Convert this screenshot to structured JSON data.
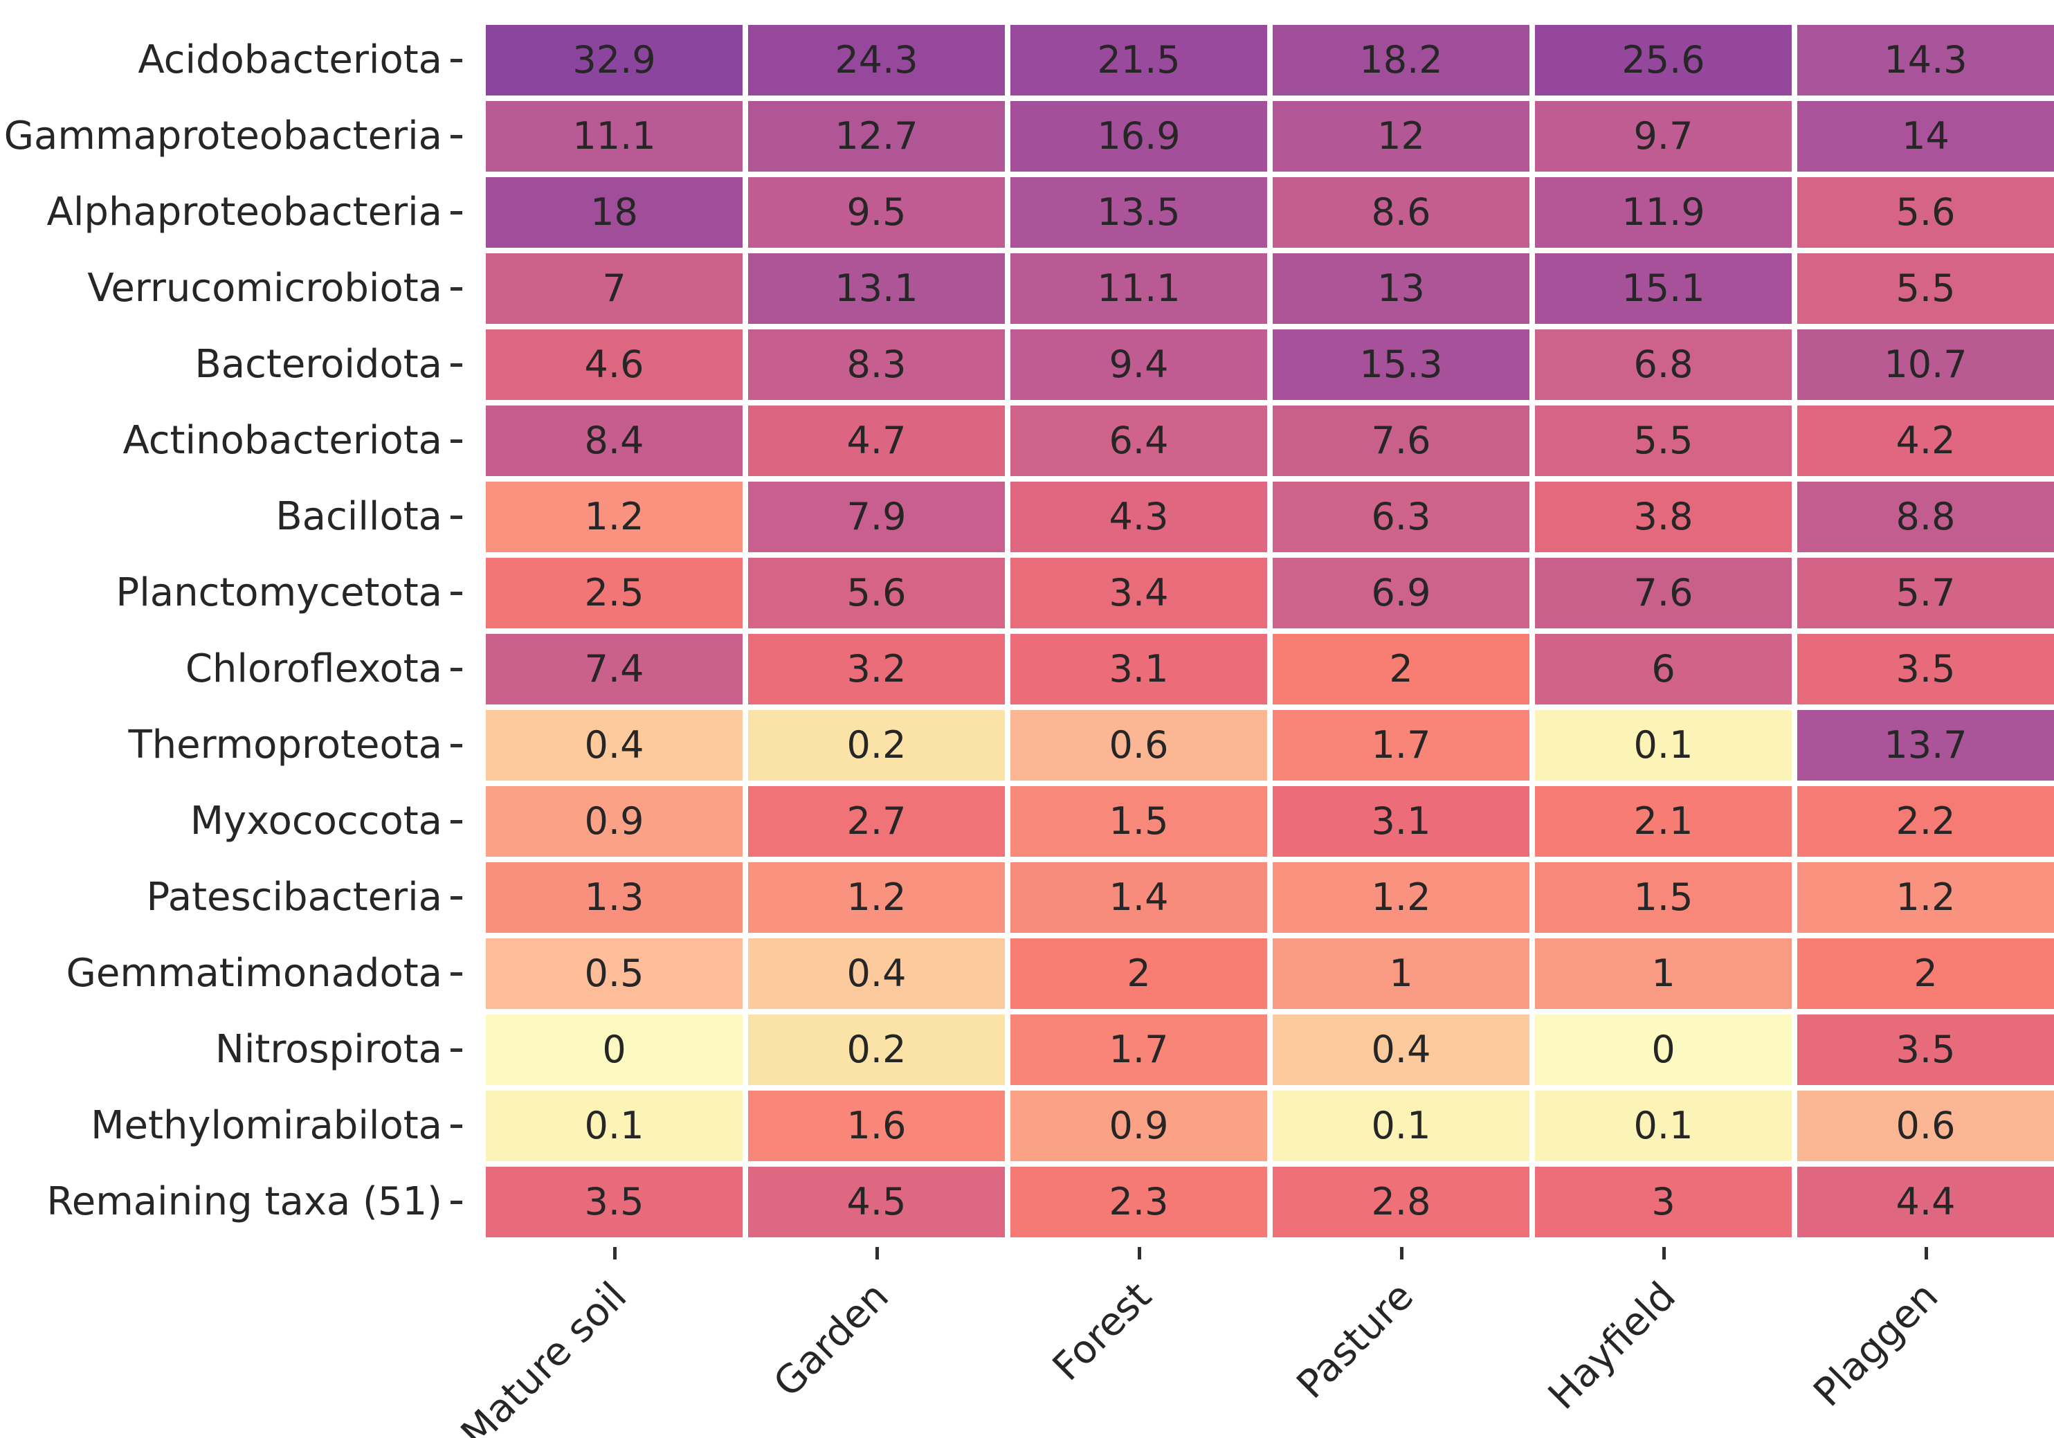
{
  "chart_data": {
    "type": "heatmap",
    "title": "",
    "rows": [
      "Acidobacteriota",
      "Gammaproteobacteria",
      "Alphaproteobacteria",
      "Verrucomicrobiota",
      "Bacteroidota",
      "Actinobacteriota",
      "Bacillota",
      "Planctomycetota",
      "Chloroflexota",
      "Thermoproteota",
      "Myxococcota",
      "Patescibacteria",
      "Gemmatimonadota",
      "Nitrospirota",
      "Methylomirabilota",
      "Remaining taxa (51)"
    ],
    "columns": [
      "Mature soil",
      "Garden",
      "Forest",
      "Pasture",
      "Hayfield",
      "Plaggen"
    ],
    "values": [
      [
        32.9,
        24.3,
        21.5,
        18.2,
        25.6,
        14.3
      ],
      [
        11.1,
        12.7,
        16.9,
        12,
        9.7,
        14
      ],
      [
        18,
        9.5,
        13.5,
        8.6,
        11.9,
        5.6
      ],
      [
        7,
        13.1,
        11.1,
        13,
        15.1,
        5.5
      ],
      [
        4.6,
        8.3,
        9.4,
        15.3,
        6.8,
        10.7
      ],
      [
        8.4,
        4.7,
        6.4,
        7.6,
        5.5,
        4.2
      ],
      [
        1.2,
        7.9,
        4.3,
        6.3,
        3.8,
        8.8
      ],
      [
        2.5,
        5.6,
        3.4,
        6.9,
        7.6,
        5.7
      ],
      [
        7.4,
        3.2,
        3.1,
        2,
        6,
        3.5
      ],
      [
        0.4,
        0.2,
        0.6,
        1.7,
        0.1,
        13.7
      ],
      [
        0.9,
        2.7,
        1.5,
        3.1,
        2.1,
        2.2
      ],
      [
        1.3,
        1.2,
        1.4,
        1.2,
        1.5,
        1.2
      ],
      [
        0.5,
        0.4,
        2,
        1,
        1,
        2
      ],
      [
        0,
        0.2,
        1.7,
        0.4,
        0,
        3.5
      ],
      [
        0.1,
        1.6,
        0.9,
        0.1,
        0.1,
        0.6
      ],
      [
        3.5,
        4.5,
        2.3,
        2.8,
        3,
        4.4
      ]
    ],
    "annotation_text_color": "#262626",
    "grid_gap_color": "#ffffff",
    "tick_color": "#2f2f2f",
    "colormap_stops": [
      {
        "value": 0,
        "color": "#fdfac1"
      },
      {
        "value": 0.1,
        "color": "#fbf4b6"
      },
      {
        "value": 0.2,
        "color": "#fbe3a8"
      },
      {
        "value": 0.5,
        "color": "#fcbd98"
      },
      {
        "value": 1,
        "color": "#f99a82"
      },
      {
        "value": 1.5,
        "color": "#f8897a"
      },
      {
        "value": 2,
        "color": "#f87e73"
      },
      {
        "value": 3,
        "color": "#ed6e78"
      },
      {
        "value": 4,
        "color": "#e2687e"
      },
      {
        "value": 5,
        "color": "#da6583"
      },
      {
        "value": 6,
        "color": "#d26388"
      },
      {
        "value": 7,
        "color": "#cc628a"
      },
      {
        "value": 8,
        "color": "#c75f8e"
      },
      {
        "value": 9,
        "color": "#c25d90"
      },
      {
        "value": 10,
        "color": "#bd5b92"
      },
      {
        "value": 11,
        "color": "#b95a94"
      },
      {
        "value": 12,
        "color": "#b45796"
      },
      {
        "value": 13,
        "color": "#ae5598"
      },
      {
        "value": 14,
        "color": "#aa539a"
      },
      {
        "value": 16,
        "color": "#a5509a"
      },
      {
        "value": 18,
        "color": "#a04d9a"
      },
      {
        "value": 20,
        "color": "#9c4b9b"
      },
      {
        "value": 23,
        "color": "#97499c"
      },
      {
        "value": 26,
        "color": "#93479c"
      },
      {
        "value": 33,
        "color": "#8c459e"
      }
    ]
  }
}
